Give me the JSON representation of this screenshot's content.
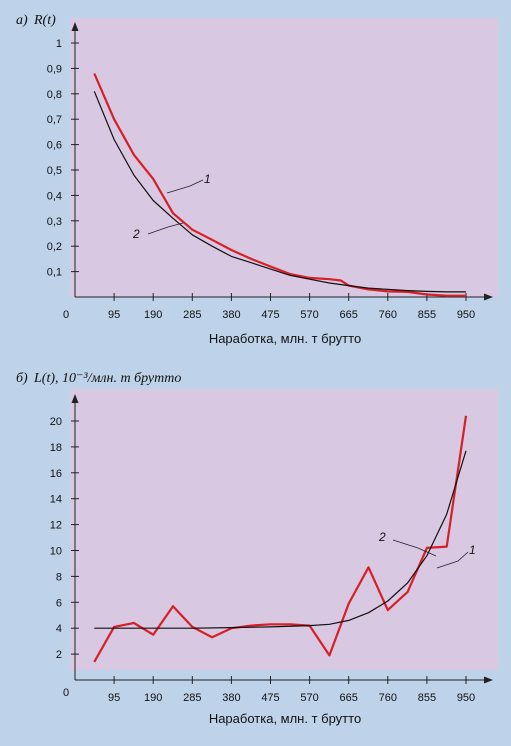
{
  "chart_data": [
    {
      "type": "line",
      "panel_label": "а)",
      "ylabel": "R(t)",
      "xlabel": "Наработка, млн. т брутто",
      "x_ticks": [
        95,
        190,
        285,
        380,
        475,
        570,
        665,
        760,
        855,
        950
      ],
      "y_ticks": [
        0.1,
        0.2,
        0.3,
        0.4,
        0.5,
        0.6,
        0.7,
        0.8,
        0.9,
        1
      ],
      "y_tick_labels": [
        "0,1",
        "0,2",
        "0,3",
        "0,4",
        "0,5",
        "0,6",
        "0,7",
        "0,8",
        "0,9",
        "1"
      ],
      "origin_label": "0",
      "xlim": [
        0,
        1000
      ],
      "ylim": [
        0,
        1.05
      ],
      "grid": false,
      "colors": {
        "series_1": "#d71f26",
        "series_2": "#111111",
        "background": "#d9c8e2",
        "frame": "#bed3ea"
      },
      "series": [
        {
          "name": "1",
          "x": [
            47,
            95,
            143,
            190,
            238,
            285,
            333,
            380,
            428,
            475,
            523,
            570,
            618,
            646,
            665,
            713,
            760,
            808,
            855,
            903,
            950
          ],
          "values": [
            0.88,
            0.7,
            0.56,
            0.465,
            0.33,
            0.265,
            0.225,
            0.185,
            0.15,
            0.12,
            0.09,
            0.075,
            0.07,
            0.065,
            0.045,
            0.03,
            0.022,
            0.02,
            0.01,
            0.005,
            0.005
          ]
        },
        {
          "name": "2",
          "x": [
            47,
            95,
            143,
            190,
            238,
            285,
            333,
            380,
            428,
            475,
            523,
            570,
            618,
            665,
            713,
            760,
            808,
            855,
            903,
            950
          ],
          "values": [
            0.81,
            0.62,
            0.48,
            0.38,
            0.31,
            0.245,
            0.2,
            0.16,
            0.135,
            0.11,
            0.085,
            0.07,
            0.055,
            0.045,
            0.035,
            0.03,
            0.025,
            0.022,
            0.02,
            0.02
          ]
        }
      ]
    },
    {
      "type": "line",
      "panel_label": "б)",
      "ylabel": "L(t), 10⁻³/млн. т брутто",
      "xlabel": "Наработка, млн. т брутто",
      "x_ticks": [
        95,
        190,
        285,
        380,
        475,
        570,
        665,
        760,
        855,
        950
      ],
      "y_ticks": [
        2,
        4,
        6,
        8,
        10,
        12,
        14,
        16,
        18,
        20
      ],
      "y_tick_labels": [
        "2",
        "4",
        "6",
        "8",
        "10",
        "12",
        "14",
        "16",
        "18",
        "20"
      ],
      "origin_label": "0",
      "xlim": [
        0,
        1000
      ],
      "ylim": [
        0,
        21.5
      ],
      "grid": false,
      "colors": {
        "series_1": "#d71f26",
        "series_2": "#111111",
        "background": "#d9c8e2",
        "frame": "#bed3ea"
      },
      "series": [
        {
          "name": "1",
          "x": [
            47,
            95,
            143,
            190,
            238,
            285,
            333,
            380,
            428,
            475,
            523,
            570,
            618,
            665,
            713,
            760,
            808,
            855,
            903,
            950
          ],
          "values": [
            1.4,
            4.1,
            4.4,
            3.5,
            5.7,
            4.1,
            3.3,
            4.0,
            4.2,
            4.3,
            4.3,
            4.2,
            1.9,
            5.9,
            8.7,
            5.4,
            6.8,
            10.2,
            10.3,
            20.4
          ]
        },
        {
          "name": "2",
          "x": [
            47,
            95,
            190,
            285,
            380,
            475,
            570,
            618,
            665,
            713,
            760,
            808,
            855,
            903,
            950
          ],
          "values": [
            4.0,
            4.0,
            4.0,
            4.0,
            4.05,
            4.1,
            4.2,
            4.3,
            4.6,
            5.2,
            6.1,
            7.5,
            9.6,
            12.8,
            17.7
          ]
        }
      ]
    }
  ]
}
